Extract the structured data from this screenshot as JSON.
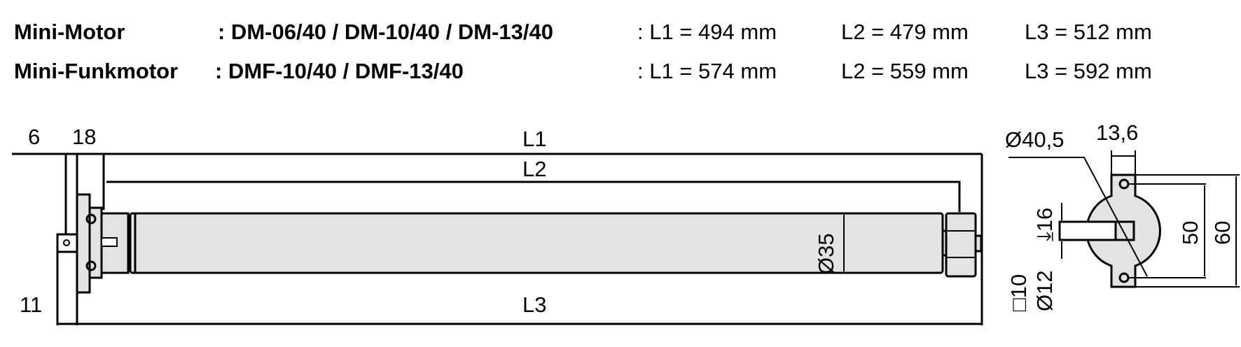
{
  "header": {
    "rows": [
      {
        "name": "Mini-Motor",
        "models": ": DM-06/40 / DM-10/40 / DM-13/40",
        "l1": ": L1 = 494 mm",
        "l2": "L2 = 479 mm",
        "l3": "L3 = 512 mm"
      },
      {
        "name": "Mini-Funkmotor",
        "models": ": DMF-10/40 / DMF-13/40",
        "l1": ": L1 = 574 mm",
        "l2": "L2 = 559 mm",
        "l3": "L3 = 592 mm"
      }
    ]
  },
  "side_view": {
    "dim_6": "6",
    "dim_18": "18",
    "dim_11": "11",
    "label_l1": "L1",
    "label_l2": "L2",
    "label_l3": "L3",
    "diameter_tube": "Ø35"
  },
  "end_view": {
    "diameter_head": "Ø40,5",
    "width_flange": "13,6",
    "shaft_depth": "16",
    "shaft_square": "□10",
    "shaft_round": "Ø12",
    "hole_spacing": "50",
    "flange_height": "60"
  },
  "colors": {
    "part_fill": "#e3e3e3",
    "line": "#000000"
  }
}
